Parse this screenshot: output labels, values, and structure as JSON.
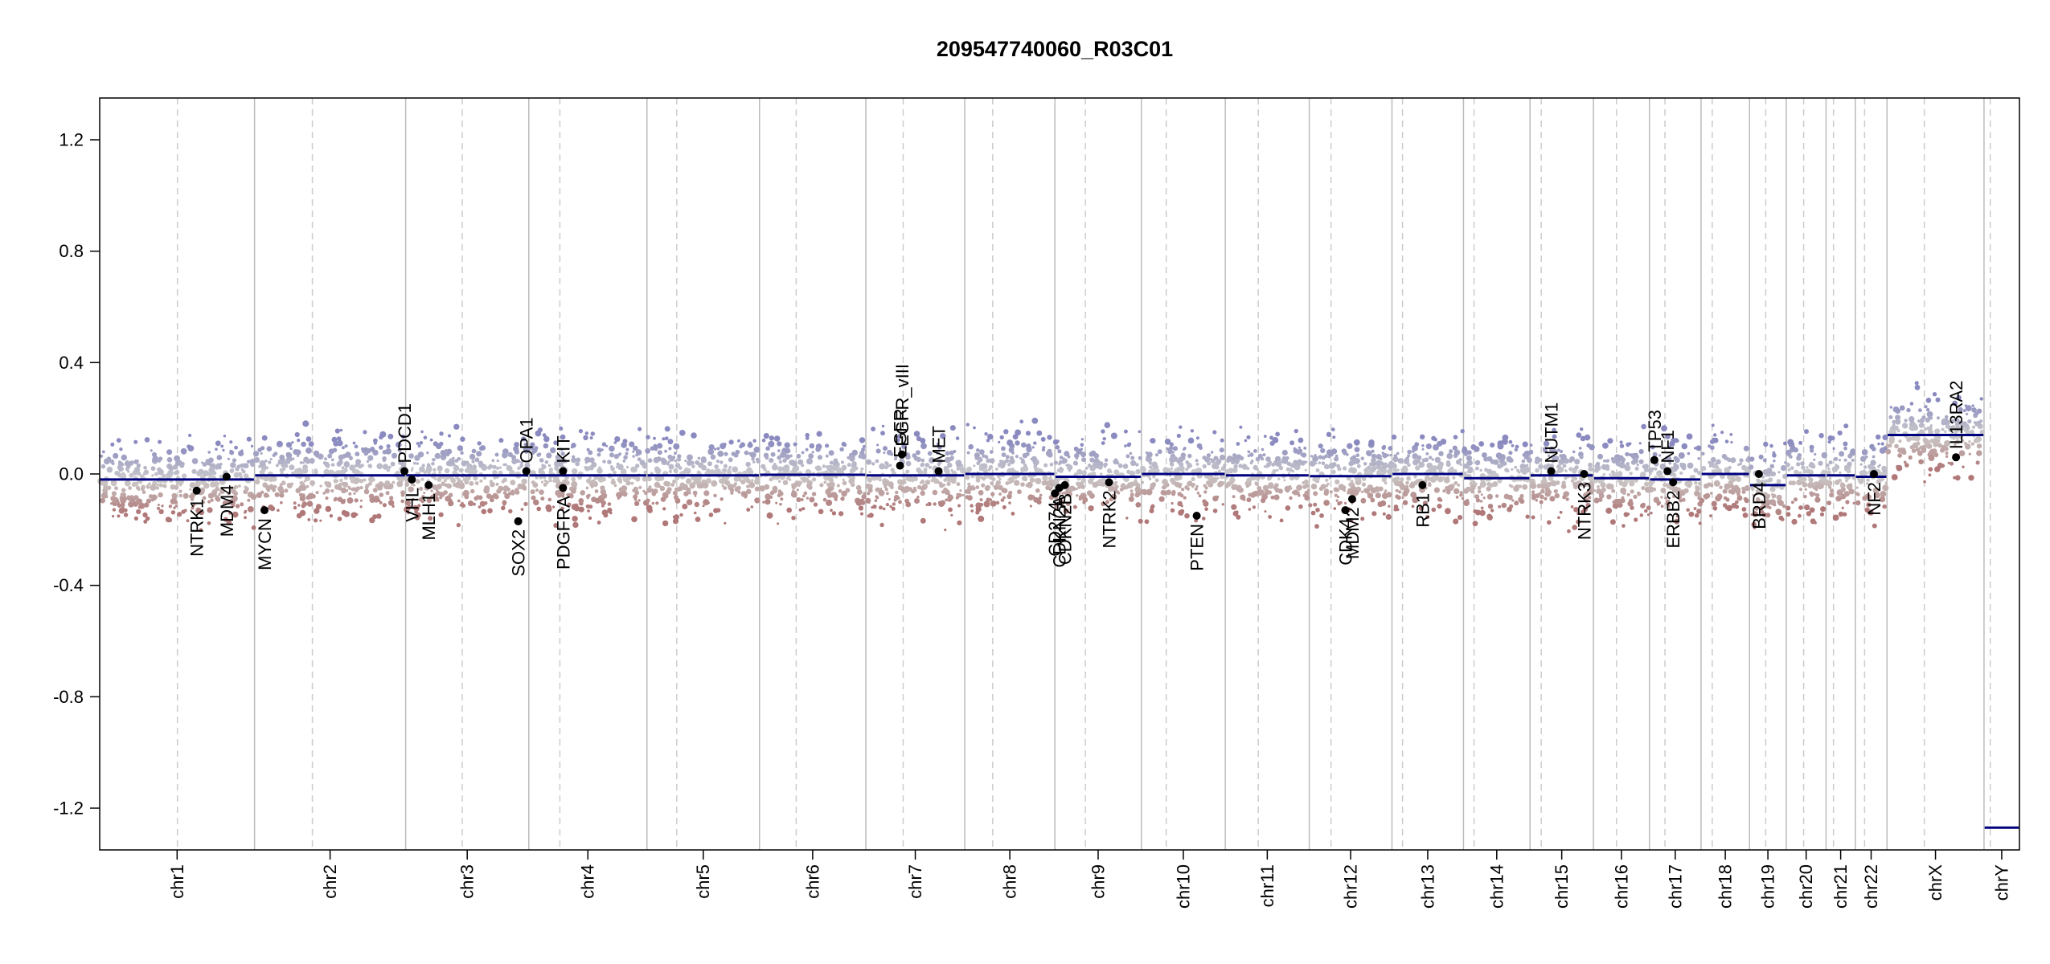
{
  "chart_data": {
    "type": "scatter",
    "title": "209547740060_R03C01",
    "xlabel": "",
    "ylabel": "",
    "ylim": [
      -1.35,
      1.35
    ],
    "y_ticks": [
      "1.2",
      "0.8",
      "0.4",
      "0.0",
      "-0.4",
      "-0.8",
      "-1.2"
    ],
    "y_tick_values": [
      1.2,
      0.8,
      0.4,
      0.0,
      -0.4,
      -0.8,
      -1.2
    ],
    "grid": false,
    "colors": {
      "segment": "#00007f",
      "gain": "#8a8ac0",
      "loss": "#b07878",
      "neutral": "#cccccc",
      "boundary": "#bbbbbb",
      "centromere": "#cccccc",
      "gene_point": "#000000"
    },
    "chromosomes": [
      {
        "name": "chr1",
        "start": 0,
        "end": 249,
        "centromere": 125,
        "segment": -0.02
      },
      {
        "name": "chr2",
        "start": 249,
        "end": 492,
        "centromere": 342,
        "segment": -0.005
      },
      {
        "name": "chr3",
        "start": 492,
        "end": 690,
        "centromere": 583,
        "segment": -0.005
      },
      {
        "name": "chr4",
        "start": 690,
        "end": 880,
        "centromere": 740,
        "segment": -0.005
      },
      {
        "name": "chr5",
        "start": 880,
        "end": 1061,
        "centromere": 928,
        "segment": -0.005
      },
      {
        "name": "chr6",
        "start": 1061,
        "end": 1232,
        "centromere": 1120,
        "segment": -0.003
      },
      {
        "name": "chr7",
        "start": 1232,
        "end": 1391,
        "centromere": 1292,
        "segment": -0.005
      },
      {
        "name": "chr8",
        "start": 1391,
        "end": 1536,
        "centromere": 1436,
        "segment": 0.0
      },
      {
        "name": "chr9",
        "start": 1536,
        "end": 1675,
        "centromere": 1585,
        "segment": -0.01
      },
      {
        "name": "chr10",
        "start": 1675,
        "end": 1810,
        "centromere": 1715,
        "segment": 0.0
      },
      {
        "name": "chr11",
        "start": 1810,
        "end": 1945,
        "centromere": 1863,
        "segment": -0.005
      },
      {
        "name": "chr12",
        "start": 1945,
        "end": 2078,
        "centromere": 1980,
        "segment": -0.008
      },
      {
        "name": "chr13",
        "start": 2078,
        "end": 2193,
        "centromere": 2095,
        "segment": 0.0
      },
      {
        "name": "chr14",
        "start": 2193,
        "end": 2300,
        "centromere": 2210,
        "segment": -0.015
      },
      {
        "name": "chr15",
        "start": 2300,
        "end": 2402,
        "centromere": 2318,
        "segment": -0.005
      },
      {
        "name": "chr16",
        "start": 2402,
        "end": 2492,
        "centromere": 2439,
        "segment": -0.015
      },
      {
        "name": "chr17",
        "start": 2492,
        "end": 2575,
        "centromere": 2517,
        "segment": -0.02
      },
      {
        "name": "chr18",
        "start": 2575,
        "end": 2653,
        "centromere": 2593,
        "segment": 0.0
      },
      {
        "name": "chr19",
        "start": 2653,
        "end": 2712,
        "centromere": 2679,
        "segment": -0.04
      },
      {
        "name": "chr20",
        "start": 2712,
        "end": 2776,
        "centromere": 2740,
        "segment": -0.005
      },
      {
        "name": "chr21",
        "start": 2776,
        "end": 2823,
        "centromere": 2788,
        "segment": -0.005
      },
      {
        "name": "chr22",
        "start": 2823,
        "end": 2874,
        "centromere": 2838,
        "segment": -0.01
      },
      {
        "name": "chrX",
        "start": 2874,
        "end": 3030,
        "centromere": 2934,
        "segment": 0.14
      },
      {
        "name": "chrY",
        "start": 3030,
        "end": 3087,
        "centromere": 3040,
        "segment": -1.27
      }
    ],
    "genes": [
      {
        "name": "NTRK1",
        "x": 156,
        "y": -0.06,
        "side": "below"
      },
      {
        "name": "MDM4",
        "x": 204,
        "y": -0.01,
        "side": "below"
      },
      {
        "name": "MYCN",
        "x": 265,
        "y": -0.13,
        "side": "below"
      },
      {
        "name": "PDCD1",
        "x": 490,
        "y": 0.01,
        "side": "above"
      },
      {
        "name": "VHL",
        "x": 502,
        "y": -0.02,
        "side": "below"
      },
      {
        "name": "MLH1",
        "x": 529,
        "y": -0.04,
        "side": "below"
      },
      {
        "name": "SOX2",
        "x": 673,
        "y": -0.17,
        "side": "below"
      },
      {
        "name": "OPA1",
        "x": 686,
        "y": 0.01,
        "side": "above"
      },
      {
        "name": "KIT",
        "x": 745,
        "y": 0.01,
        "side": "above"
      },
      {
        "name": "PDGFRA",
        "x": 745,
        "y": -0.05,
        "side": "below"
      },
      {
        "name": "EGFR",
        "x": 1287,
        "y": 0.03,
        "side": "above"
      },
      {
        "name": "EGFR_vIII",
        "x": 1290,
        "y": 0.07,
        "side": "above"
      },
      {
        "name": "MET",
        "x": 1349,
        "y": 0.01,
        "side": "above"
      },
      {
        "name": "CD274",
        "x": 1536,
        "y": -0.07,
        "side": "below"
      },
      {
        "name": "CDKN2A",
        "x": 1543,
        "y": -0.05,
        "side": "below"
      },
      {
        "name": "CDKN2B",
        "x": 1552,
        "y": -0.04,
        "side": "below"
      },
      {
        "name": "NTRK2",
        "x": 1623,
        "y": -0.03,
        "side": "below"
      },
      {
        "name": "PTEN",
        "x": 1764,
        "y": -0.15,
        "side": "below"
      },
      {
        "name": "CDK4",
        "x": 2003,
        "y": -0.13,
        "side": "below"
      },
      {
        "name": "MDM2",
        "x": 2014,
        "y": -0.09,
        "side": "below"
      },
      {
        "name": "RB1",
        "x": 2127,
        "y": -0.04,
        "side": "below"
      },
      {
        "name": "NUTM1",
        "x": 2334,
        "y": 0.01,
        "side": "above"
      },
      {
        "name": "NTRK3",
        "x": 2387,
        "y": 0.0,
        "side": "below"
      },
      {
        "name": "TP53",
        "x": 2500,
        "y": 0.05,
        "side": "above"
      },
      {
        "name": "NF1",
        "x": 2521,
        "y": 0.01,
        "side": "above"
      },
      {
        "name": "ERBB2",
        "x": 2530,
        "y": -0.03,
        "side": "below"
      },
      {
        "name": "BRD4",
        "x": 2668,
        "y": 0.0,
        "side": "below"
      },
      {
        "name": "NF2",
        "x": 2853,
        "y": 0.0,
        "side": "below"
      },
      {
        "name": "IL13RA2",
        "x": 2985,
        "y": 0.06,
        "side": "above"
      }
    ]
  }
}
